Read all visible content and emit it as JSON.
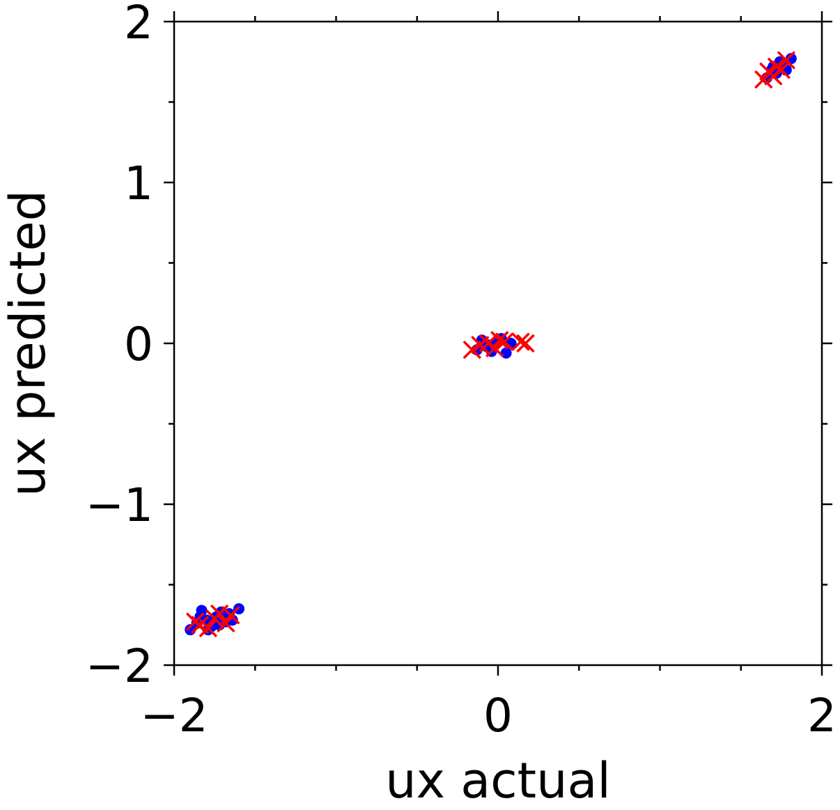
{
  "chart_data": {
    "type": "scatter",
    "title": "",
    "xlabel": "ux actual",
    "ylabel": "ux predicted",
    "xlim": [
      -2,
      2
    ],
    "ylim": [
      -2,
      2
    ],
    "x_ticks": [
      -2,
      0,
      2
    ],
    "y_ticks": [
      -2,
      -1,
      0,
      1,
      2
    ],
    "x_tick_labels": [
      "−2",
      "0",
      "2"
    ],
    "y_tick_labels": [
      "−2",
      "−1",
      "0",
      "1",
      "2"
    ],
    "minor_tick_step": 0.5,
    "grid": false,
    "legend": "none",
    "series": [
      {
        "marker": "circle",
        "color": "#0000ff",
        "x": [
          -1.9,
          -1.86,
          -1.83,
          -1.8,
          -1.77,
          -1.74,
          -1.71,
          -1.68,
          -1.66,
          -1.64,
          -1.6,
          -1.84,
          -1.79,
          -1.72,
          -0.13,
          -0.1,
          -0.07,
          -0.04,
          -0.01,
          0.02,
          0.05,
          0.08,
          -0.06,
          1.66,
          1.69,
          1.72,
          1.75,
          1.78,
          1.81,
          1.7,
          1.74
        ],
        "y": [
          -1.78,
          -1.74,
          -1.66,
          -1.72,
          -1.76,
          -1.7,
          -1.67,
          -1.73,
          -1.68,
          -1.72,
          -1.65,
          -1.7,
          -1.78,
          -1.75,
          -0.04,
          0.02,
          -0.02,
          -0.05,
          0.0,
          0.03,
          -0.06,
          0.0,
          -0.01,
          1.65,
          1.7,
          1.68,
          1.74,
          1.7,
          1.77,
          1.72,
          1.75
        ]
      },
      {
        "marker": "x",
        "color": "#ff0000",
        "x": [
          -1.87,
          -1.84,
          -1.79,
          -1.75,
          -1.72,
          -1.68,
          -1.65,
          -0.16,
          -0.11,
          -0.06,
          -0.02,
          0.01,
          0.04,
          0.14,
          0.17,
          1.64,
          1.67,
          1.7,
          1.72,
          1.75,
          1.78
        ],
        "y": [
          -1.73,
          -1.75,
          -1.77,
          -1.71,
          -1.68,
          -1.74,
          -1.69,
          -0.04,
          -0.01,
          0.0,
          -0.03,
          0.02,
          0.01,
          0.01,
          0.0,
          1.64,
          1.69,
          1.66,
          1.72,
          1.7,
          1.76
        ]
      }
    ]
  }
}
